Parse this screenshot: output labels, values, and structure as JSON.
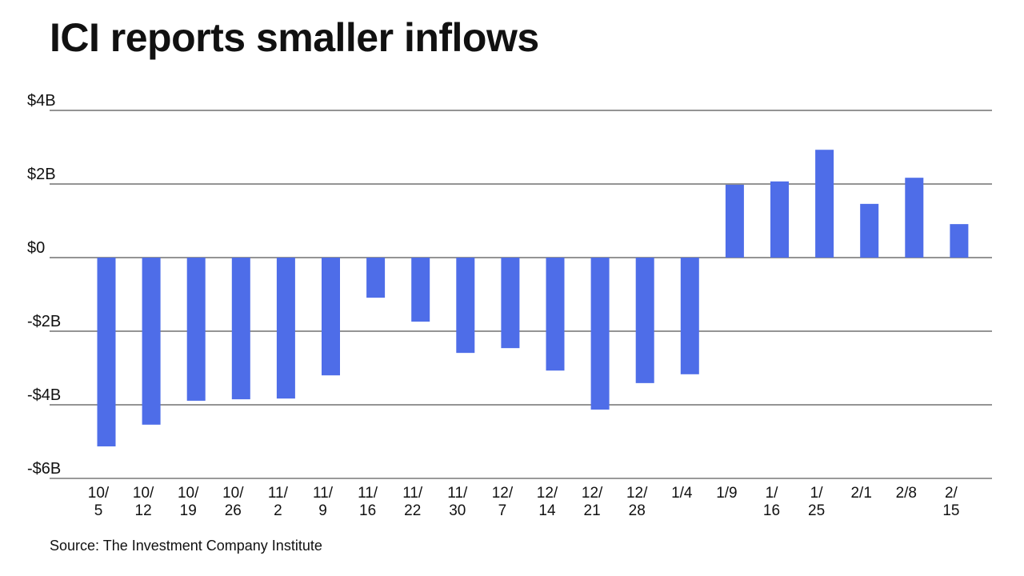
{
  "title": "ICI reports smaller inflows",
  "source": "Source: The Investment Company Institute",
  "chart_data": {
    "type": "bar",
    "title": "ICI reports smaller inflows",
    "xlabel": "",
    "ylabel": "",
    "ylim": [
      -6,
      4
    ],
    "yticks": [
      4,
      2,
      0,
      -2,
      -4,
      -6
    ],
    "ytick_labels": [
      "$4B",
      "$2B",
      "$0",
      "-$2B",
      "-$4B",
      "-$6B"
    ],
    "grid": true,
    "bar_color": "#4e6de8",
    "categories": [
      "10/5",
      "10/12",
      "10/19",
      "10/26",
      "11/2",
      "11/9",
      "11/16",
      "11/22",
      "11/30",
      "12/7",
      "12/14",
      "12/21",
      "12/28",
      "1/4",
      "1/9",
      "1/16",
      "1/25",
      "2/1",
      "2/8",
      "2/15"
    ],
    "category_labels": [
      [
        "10/",
        "5"
      ],
      [
        "10/",
        "12"
      ],
      [
        "10/",
        "19"
      ],
      [
        "10/",
        "26"
      ],
      [
        "11/",
        "2"
      ],
      [
        "11/",
        "9"
      ],
      [
        "11/",
        "16"
      ],
      [
        "11/",
        "22"
      ],
      [
        "11/",
        "30"
      ],
      [
        "12/",
        "7"
      ],
      [
        "12/",
        "14"
      ],
      [
        "12/",
        "21"
      ],
      [
        "12/",
        "28"
      ],
      [
        "1/4"
      ],
      [
        "1/9"
      ],
      [
        "1/",
        "16"
      ],
      [
        "1/",
        "25"
      ],
      [
        "2/1"
      ],
      [
        "2/8"
      ],
      [
        "2/",
        "15"
      ]
    ],
    "values": [
      -5.13,
      -4.54,
      -3.89,
      -3.85,
      -3.83,
      -3.2,
      -1.09,
      -1.74,
      -2.59,
      -2.46,
      -3.07,
      -4.13,
      -3.41,
      -3.17,
      1.98,
      2.07,
      2.93,
      1.46,
      2.17,
      0.91
    ],
    "units": "billions USD"
  }
}
